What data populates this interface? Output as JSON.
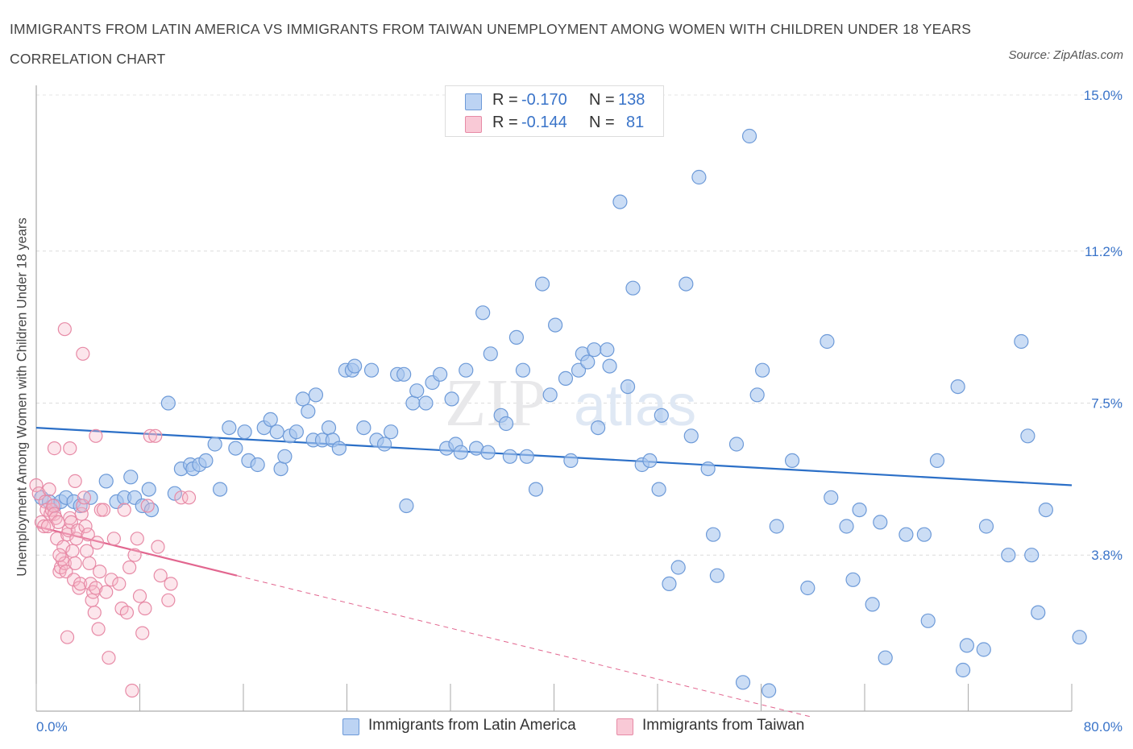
{
  "title": "IMMIGRANTS FROM LATIN AMERICA VS IMMIGRANTS FROM TAIWAN UNEMPLOYMENT AMONG WOMEN WITH CHILDREN UNDER 18 YEARS CORRELATION CHART",
  "source": "Source: ZipAtlas.com",
  "watermark": {
    "zip": "ZIP",
    "atlas": "atlas"
  },
  "legend": {
    "r_label": "R =",
    "n_label": "N =",
    "series1": {
      "r": "-0.170",
      "n": "138"
    },
    "series2": {
      "r": "-0.144",
      "n": "81"
    }
  },
  "colors": {
    "blue_fill": "#a9c7ef",
    "blue_stroke": "#6d9ad8",
    "blue_line": "#2b6fc7",
    "pink_fill": "#f6b6c8",
    "pink_stroke": "#e78aa6",
    "pink_line": "#e2668f",
    "tick_label": "#3a74c9"
  },
  "chart_data": {
    "type": "scatter",
    "title": "IMMIGRANTS FROM LATIN AMERICA VS IMMIGRANTS FROM TAIWAN UNEMPLOYMENT AMONG WOMEN WITH CHILDREN UNDER 18 YEARS CORRELATION CHART",
    "xlabel": "",
    "ylabel": "Unemployment Among Women with Children Under 18 years",
    "xlim": [
      0,
      80
    ],
    "ylim": [
      0,
      15
    ],
    "x_tick_labels": [
      "0.0%",
      "80.0%"
    ],
    "y_ticks": [
      3.8,
      7.5,
      11.2,
      15.0
    ],
    "y_tick_labels": [
      "3.8%",
      "7.5%",
      "11.2%",
      "15.0%"
    ],
    "grid": true,
    "legend_position": "top-center",
    "series": [
      {
        "name": "Immigrants from Latin America",
        "r": -0.17,
        "n": 138,
        "trend": {
          "x": [
            0,
            80
          ],
          "y": [
            6.9,
            5.5
          ]
        },
        "points": [
          [
            0.4,
            5.2
          ],
          [
            1.0,
            5.1
          ],
          [
            1.4,
            5.0
          ],
          [
            1.9,
            5.1
          ],
          [
            2.3,
            5.2
          ],
          [
            2.9,
            5.1
          ],
          [
            3.4,
            5.0
          ],
          [
            4.2,
            5.2
          ],
          [
            5.4,
            5.6
          ],
          [
            6.2,
            5.1
          ],
          [
            6.8,
            5.2
          ],
          [
            7.3,
            5.7
          ],
          [
            7.6,
            5.2
          ],
          [
            8.2,
            5.0
          ],
          [
            8.9,
            4.9
          ],
          [
            8.7,
            5.4
          ],
          [
            10.7,
            5.3
          ],
          [
            11.2,
            5.9
          ],
          [
            10.2,
            7.5
          ],
          [
            11.9,
            6.0
          ],
          [
            12.1,
            5.9
          ],
          [
            12.6,
            6.0
          ],
          [
            13.1,
            6.1
          ],
          [
            13.8,
            6.5
          ],
          [
            14.2,
            5.4
          ],
          [
            14.9,
            6.9
          ],
          [
            15.4,
            6.4
          ],
          [
            16.1,
            6.8
          ],
          [
            16.4,
            6.1
          ],
          [
            17.1,
            6.0
          ],
          [
            17.6,
            6.9
          ],
          [
            18.1,
            7.1
          ],
          [
            18.6,
            6.8
          ],
          [
            18.9,
            5.9
          ],
          [
            19.2,
            6.2
          ],
          [
            19.6,
            6.7
          ],
          [
            20.1,
            6.8
          ],
          [
            20.6,
            7.6
          ],
          [
            21.0,
            7.3
          ],
          [
            21.4,
            6.6
          ],
          [
            21.6,
            7.7
          ],
          [
            22.1,
            6.6
          ],
          [
            22.6,
            6.9
          ],
          [
            22.9,
            6.6
          ],
          [
            23.4,
            6.4
          ],
          [
            23.9,
            8.3
          ],
          [
            24.4,
            8.3
          ],
          [
            24.6,
            8.4
          ],
          [
            25.3,
            6.9
          ],
          [
            25.9,
            8.3
          ],
          [
            26.3,
            6.6
          ],
          [
            26.9,
            6.5
          ],
          [
            27.4,
            6.8
          ],
          [
            27.9,
            8.2
          ],
          [
            28.4,
            8.2
          ],
          [
            28.6,
            5.0
          ],
          [
            29.1,
            7.5
          ],
          [
            29.4,
            7.8
          ],
          [
            30.1,
            7.5
          ],
          [
            30.6,
            8.0
          ],
          [
            31.2,
            8.2
          ],
          [
            31.7,
            6.4
          ],
          [
            32.1,
            7.6
          ],
          [
            32.4,
            6.5
          ],
          [
            32.8,
            6.3
          ],
          [
            33.2,
            8.3
          ],
          [
            34.0,
            6.4
          ],
          [
            34.5,
            9.7
          ],
          [
            34.9,
            6.3
          ],
          [
            35.1,
            8.7
          ],
          [
            35.9,
            7.2
          ],
          [
            36.3,
            7.0
          ],
          [
            36.6,
            6.2
          ],
          [
            37.1,
            9.1
          ],
          [
            37.6,
            8.3
          ],
          [
            37.9,
            6.2
          ],
          [
            38.6,
            5.4
          ],
          [
            39.1,
            10.4
          ],
          [
            39.7,
            7.7
          ],
          [
            40.1,
            9.4
          ],
          [
            40.9,
            8.1
          ],
          [
            41.3,
            6.1
          ],
          [
            41.9,
            8.3
          ],
          [
            42.2,
            8.7
          ],
          [
            42.6,
            8.5
          ],
          [
            43.1,
            8.8
          ],
          [
            43.4,
            6.9
          ],
          [
            44.1,
            8.8
          ],
          [
            44.3,
            8.4
          ],
          [
            45.1,
            12.4
          ],
          [
            45.7,
            7.9
          ],
          [
            46.1,
            10.3
          ],
          [
            46.8,
            6.0
          ],
          [
            47.4,
            6.1
          ],
          [
            48.1,
            5.4
          ],
          [
            48.3,
            7.2
          ],
          [
            48.9,
            3.1
          ],
          [
            49.6,
            3.5
          ],
          [
            50.2,
            10.4
          ],
          [
            50.6,
            6.7
          ],
          [
            51.2,
            13.0
          ],
          [
            51.9,
            5.9
          ],
          [
            52.3,
            4.3
          ],
          [
            52.6,
            3.3
          ],
          [
            54.1,
            6.5
          ],
          [
            55.1,
            14.0
          ],
          [
            54.6,
            0.7
          ],
          [
            56.1,
            8.3
          ],
          [
            55.7,
            7.7
          ],
          [
            56.6,
            0.5
          ],
          [
            57.2,
            4.5
          ],
          [
            58.4,
            6.1
          ],
          [
            59.6,
            3.0
          ],
          [
            61.1,
            9.0
          ],
          [
            61.4,
            5.2
          ],
          [
            62.6,
            4.5
          ],
          [
            63.1,
            3.2
          ],
          [
            63.6,
            4.9
          ],
          [
            64.6,
            2.6
          ],
          [
            65.2,
            4.6
          ],
          [
            65.6,
            1.3
          ],
          [
            67.2,
            4.3
          ],
          [
            68.6,
            4.3
          ],
          [
            68.9,
            2.2
          ],
          [
            69.6,
            6.1
          ],
          [
            71.2,
            7.9
          ],
          [
            71.9,
            1.6
          ],
          [
            71.6,
            1.0
          ],
          [
            73.2,
            1.5
          ],
          [
            73.4,
            4.5
          ],
          [
            75.1,
            3.8
          ],
          [
            76.1,
            9.0
          ],
          [
            76.6,
            6.7
          ],
          [
            76.9,
            3.8
          ],
          [
            77.4,
            2.4
          ],
          [
            78.0,
            4.9
          ],
          [
            80.6,
            1.8
          ]
        ]
      },
      {
        "name": "Immigrants from Taiwan",
        "r": -0.144,
        "n": 81,
        "trend": {
          "x": [
            0,
            15.5
          ],
          "y": [
            4.5,
            3.3
          ]
        },
        "trend_dashed": {
          "x": [
            15.5,
            60
          ],
          "y": [
            3.3,
            -0.15
          ]
        },
        "points": [
          [
            0.0,
            5.5
          ],
          [
            0.2,
            5.3
          ],
          [
            0.4,
            4.6
          ],
          [
            0.6,
            4.5
          ],
          [
            0.7,
            5.1
          ],
          [
            0.8,
            4.9
          ],
          [
            0.9,
            4.5
          ],
          [
            1.0,
            5.4
          ],
          [
            1.1,
            4.8
          ],
          [
            1.2,
            4.9
          ],
          [
            1.3,
            5.0
          ],
          [
            1.4,
            4.8
          ],
          [
            1.5,
            4.7
          ],
          [
            1.6,
            4.2
          ],
          [
            1.7,
            4.6
          ],
          [
            1.8,
            3.4
          ],
          [
            1.9,
            3.5
          ],
          [
            2.0,
            3.7
          ],
          [
            2.1,
            4.0
          ],
          [
            2.2,
            3.6
          ],
          [
            2.3,
            3.4
          ],
          [
            2.4,
            4.3
          ],
          [
            2.5,
            4.4
          ],
          [
            2.6,
            4.7
          ],
          [
            2.7,
            4.6
          ],
          [
            2.8,
            3.9
          ],
          [
            2.9,
            3.2
          ],
          [
            3.0,
            3.6
          ],
          [
            3.1,
            4.2
          ],
          [
            3.2,
            4.4
          ],
          [
            3.3,
            3.0
          ],
          [
            3.4,
            3.1
          ],
          [
            3.5,
            4.8
          ],
          [
            3.6,
            5.0
          ],
          [
            3.7,
            5.2
          ],
          [
            3.8,
            4.5
          ],
          [
            3.9,
            3.9
          ],
          [
            4.0,
            4.3
          ],
          [
            4.1,
            3.6
          ],
          [
            4.2,
            3.1
          ],
          [
            4.3,
            2.7
          ],
          [
            4.4,
            2.9
          ],
          [
            4.5,
            2.4
          ],
          [
            4.6,
            3.0
          ],
          [
            4.7,
            4.1
          ],
          [
            4.8,
            2.0
          ],
          [
            4.9,
            3.4
          ],
          [
            5.0,
            4.9
          ],
          [
            5.4,
            2.9
          ],
          [
            5.6,
            1.3
          ],
          [
            5.8,
            3.2
          ],
          [
            6.0,
            4.2
          ],
          [
            6.4,
            3.1
          ],
          [
            6.6,
            2.5
          ],
          [
            6.8,
            4.9
          ],
          [
            7.0,
            2.4
          ],
          [
            7.2,
            3.5
          ],
          [
            7.4,
            0.5
          ],
          [
            7.6,
            3.8
          ],
          [
            7.8,
            4.2
          ],
          [
            8.0,
            2.8
          ],
          [
            8.2,
            1.9
          ],
          [
            8.4,
            2.5
          ],
          [
            8.6,
            5.0
          ],
          [
            8.8,
            6.7
          ],
          [
            9.2,
            6.7
          ],
          [
            9.6,
            3.3
          ],
          [
            10.2,
            2.7
          ],
          [
            10.4,
            3.1
          ],
          [
            11.2,
            5.2
          ],
          [
            11.8,
            5.2
          ],
          [
            1.8,
            3.8
          ],
          [
            2.2,
            9.3
          ],
          [
            3.6,
            8.7
          ],
          [
            2.6,
            6.4
          ],
          [
            4.6,
            6.7
          ],
          [
            1.4,
            6.4
          ],
          [
            3.0,
            5.6
          ],
          [
            2.4,
            1.8
          ],
          [
            5.2,
            4.9
          ],
          [
            9.4,
            4.0
          ]
        ]
      }
    ]
  },
  "axis": {
    "x_left_label": "0.0%",
    "x_right_label": "80.0%",
    "y_label": "Unemployment Among Women with Children Under 18 years"
  },
  "bottom_legend": {
    "series1": "Immigrants from Latin America",
    "series2": "Immigrants from Taiwan"
  }
}
